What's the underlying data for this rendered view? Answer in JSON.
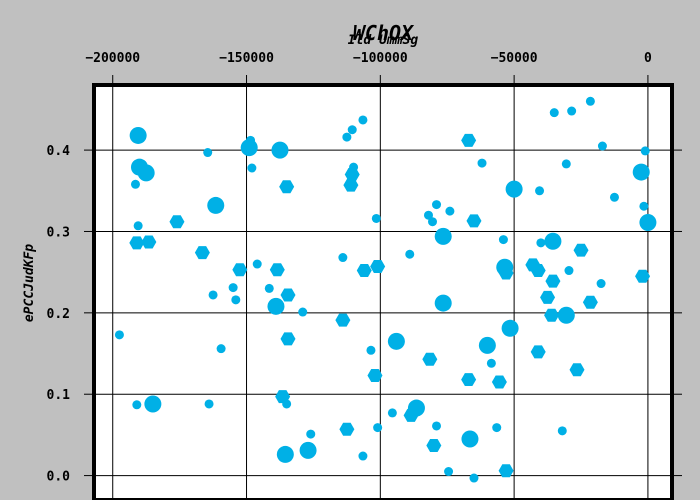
{
  "chart_data": {
    "type": "scatter",
    "title": "WChOX",
    "xlabel": "Ild UmmSg",
    "ylabel": "ePCCJudKFp",
    "x_axis_position": "top",
    "xlim": [
      -207000,
      9000
    ],
    "ylim": [
      -0.03,
      0.48
    ],
    "xticks": [
      -200000,
      -150000,
      -100000,
      -50000,
      0
    ],
    "xtick_labels": [
      "−200000",
      "−150000",
      "−100000",
      "−50000",
      "0"
    ],
    "yticks": [
      0.0,
      0.1,
      0.2,
      0.3,
      0.4
    ],
    "ytick_labels": [
      "0.0",
      "0.1",
      "0.2",
      "0.3",
      "0.4"
    ],
    "grid": true,
    "marker_color": "#00b0e6",
    "series": [
      {
        "points": [
          {
            "x": -197500,
            "y": 0.173,
            "m": "c",
            "s": "s"
          },
          {
            "x": -190500,
            "y": 0.418,
            "m": "c",
            "s": "l"
          },
          {
            "x": -190000,
            "y": 0.379,
            "m": "c",
            "s": "l"
          },
          {
            "x": -187500,
            "y": 0.372,
            "m": "c",
            "s": "l"
          },
          {
            "x": -191500,
            "y": 0.358,
            "m": "c",
            "s": "s"
          },
          {
            "x": -190500,
            "y": 0.307,
            "m": "c",
            "s": "s"
          },
          {
            "x": -191000,
            "y": 0.286,
            "m": "h",
            "s": "m"
          },
          {
            "x": -186500,
            "y": 0.287,
            "m": "h",
            "s": "m"
          },
          {
            "x": -191000,
            "y": 0.087,
            "m": "c",
            "s": "s"
          },
          {
            "x": -185000,
            "y": 0.088,
            "m": "c",
            "s": "l"
          },
          {
            "x": -176000,
            "y": 0.312,
            "m": "h",
            "s": "m"
          },
          {
            "x": -166500,
            "y": 0.274,
            "m": "h",
            "s": "m"
          },
          {
            "x": -164500,
            "y": 0.397,
            "m": "c",
            "s": "s"
          },
          {
            "x": -161500,
            "y": 0.332,
            "m": "c",
            "s": "l"
          },
          {
            "x": -162500,
            "y": 0.222,
            "m": "c",
            "s": "s"
          },
          {
            "x": -159500,
            "y": 0.156,
            "m": "c",
            "s": "s"
          },
          {
            "x": -164000,
            "y": 0.088,
            "m": "c",
            "s": "s"
          },
          {
            "x": -155000,
            "y": 0.231,
            "m": "c",
            "s": "s"
          },
          {
            "x": -154000,
            "y": 0.216,
            "m": "c",
            "s": "s"
          },
          {
            "x": -152500,
            "y": 0.253,
            "m": "h",
            "s": "m"
          },
          {
            "x": -149000,
            "y": 0.403,
            "m": "c",
            "s": "l"
          },
          {
            "x": -148500,
            "y": 0.412,
            "m": "c",
            "s": "s"
          },
          {
            "x": -148000,
            "y": 0.378,
            "m": "c",
            "s": "s"
          },
          {
            "x": -146000,
            "y": 0.26,
            "m": "c",
            "s": "s"
          },
          {
            "x": -141500,
            "y": 0.23,
            "m": "c",
            "s": "s"
          },
          {
            "x": -137500,
            "y": 0.4,
            "m": "c",
            "s": "l"
          },
          {
            "x": -138500,
            "y": 0.253,
            "m": "h",
            "s": "m"
          },
          {
            "x": -139000,
            "y": 0.208,
            "m": "c",
            "s": "l"
          },
          {
            "x": -135000,
            "y": 0.355,
            "m": "h",
            "s": "m"
          },
          {
            "x": -134500,
            "y": 0.222,
            "m": "h",
            "s": "m"
          },
          {
            "x": -134500,
            "y": 0.168,
            "m": "h",
            "s": "m"
          },
          {
            "x": -129000,
            "y": 0.201,
            "m": "c",
            "s": "s"
          },
          {
            "x": -136500,
            "y": 0.097,
            "m": "h",
            "s": "m"
          },
          {
            "x": -135000,
            "y": 0.088,
            "m": "c",
            "s": "s"
          },
          {
            "x": -135500,
            "y": 0.026,
            "m": "c",
            "s": "l"
          },
          {
            "x": -127000,
            "y": 0.031,
            "m": "c",
            "s": "l"
          },
          {
            "x": -126000,
            "y": 0.051,
            "m": "c",
            "s": "s"
          },
          {
            "x": -112500,
            "y": 0.416,
            "m": "c",
            "s": "s"
          },
          {
            "x": -110500,
            "y": 0.425,
            "m": "c",
            "s": "s"
          },
          {
            "x": -106500,
            "y": 0.437,
            "m": "c",
            "s": "s"
          },
          {
            "x": -110000,
            "y": 0.379,
            "m": "c",
            "s": "s"
          },
          {
            "x": -110500,
            "y": 0.37,
            "m": "h",
            "s": "m"
          },
          {
            "x": -111000,
            "y": 0.357,
            "m": "h",
            "s": "m"
          },
          {
            "x": -114000,
            "y": 0.268,
            "m": "c",
            "s": "s"
          },
          {
            "x": -114000,
            "y": 0.191,
            "m": "h",
            "s": "m"
          },
          {
            "x": -106000,
            "y": 0.252,
            "m": "h",
            "s": "m"
          },
          {
            "x": -101000,
            "y": 0.257,
            "m": "h",
            "s": "m"
          },
          {
            "x": -101500,
            "y": 0.316,
            "m": "c",
            "s": "s"
          },
          {
            "x": -103500,
            "y": 0.154,
            "m": "c",
            "s": "s"
          },
          {
            "x": -102000,
            "y": 0.123,
            "m": "h",
            "s": "m"
          },
          {
            "x": -112500,
            "y": 0.057,
            "m": "h",
            "s": "m"
          },
          {
            "x": -101000,
            "y": 0.059,
            "m": "c",
            "s": "s"
          },
          {
            "x": -106500,
            "y": 0.024,
            "m": "c",
            "s": "s"
          },
          {
            "x": -94000,
            "y": 0.165,
            "m": "c",
            "s": "l"
          },
          {
            "x": -95500,
            "y": 0.077,
            "m": "c",
            "s": "s"
          },
          {
            "x": -89000,
            "y": 0.272,
            "m": "c",
            "s": "s"
          },
          {
            "x": -86500,
            "y": 0.083,
            "m": "c",
            "s": "l"
          },
          {
            "x": -88500,
            "y": 0.074,
            "m": "h",
            "s": "m"
          },
          {
            "x": -82000,
            "y": 0.32,
            "m": "c",
            "s": "s"
          },
          {
            "x": -80500,
            "y": 0.312,
            "m": "c",
            "s": "s"
          },
          {
            "x": -79000,
            "y": 0.333,
            "m": "c",
            "s": "s"
          },
          {
            "x": -81500,
            "y": 0.143,
            "m": "h",
            "s": "m"
          },
          {
            "x": -76500,
            "y": 0.294,
            "m": "c",
            "s": "l"
          },
          {
            "x": -74000,
            "y": 0.325,
            "m": "c",
            "s": "s"
          },
          {
            "x": -76500,
            "y": 0.212,
            "m": "c",
            "s": "l"
          },
          {
            "x": -79000,
            "y": 0.061,
            "m": "c",
            "s": "s"
          },
          {
            "x": -80000,
            "y": 0.037,
            "m": "h",
            "s": "m"
          },
          {
            "x": -74500,
            "y": 0.005,
            "m": "c",
            "s": "s"
          },
          {
            "x": -67000,
            "y": 0.412,
            "m": "h",
            "s": "m"
          },
          {
            "x": -62000,
            "y": 0.384,
            "m": "c",
            "s": "s"
          },
          {
            "x": -65000,
            "y": 0.313,
            "m": "h",
            "s": "m"
          },
          {
            "x": -60000,
            "y": 0.16,
            "m": "c",
            "s": "l"
          },
          {
            "x": -58500,
            "y": 0.138,
            "m": "c",
            "s": "s"
          },
          {
            "x": -67000,
            "y": 0.118,
            "m": "h",
            "s": "m"
          },
          {
            "x": -66500,
            "y": 0.045,
            "m": "c",
            "s": "l"
          },
          {
            "x": -65000,
            "y": -0.003,
            "m": "c",
            "s": "s"
          },
          {
            "x": -50000,
            "y": 0.352,
            "m": "c",
            "s": "l"
          },
          {
            "x": -54000,
            "y": 0.29,
            "m": "c",
            "s": "s"
          },
          {
            "x": -53500,
            "y": 0.256,
            "m": "c",
            "s": "l"
          },
          {
            "x": -53000,
            "y": 0.249,
            "m": "h",
            "s": "m"
          },
          {
            "x": -51500,
            "y": 0.181,
            "m": "c",
            "s": "l"
          },
          {
            "x": -55500,
            "y": 0.115,
            "m": "h",
            "s": "m"
          },
          {
            "x": -56500,
            "y": 0.059,
            "m": "c",
            "s": "s"
          },
          {
            "x": -53000,
            "y": 0.006,
            "m": "h",
            "s": "m"
          },
          {
            "x": -40500,
            "y": 0.35,
            "m": "c",
            "s": "s"
          },
          {
            "x": -40000,
            "y": 0.286,
            "m": "c",
            "s": "s"
          },
          {
            "x": -43000,
            "y": 0.259,
            "m": "h",
            "s": "m"
          },
          {
            "x": -41000,
            "y": 0.252,
            "m": "h",
            "s": "m"
          },
          {
            "x": -41000,
            "y": 0.152,
            "m": "h",
            "s": "m"
          },
          {
            "x": -35000,
            "y": 0.446,
            "m": "c",
            "s": "s"
          },
          {
            "x": -28500,
            "y": 0.448,
            "m": "c",
            "s": "s"
          },
          {
            "x": -35500,
            "y": 0.288,
            "m": "c",
            "s": "l"
          },
          {
            "x": -35500,
            "y": 0.239,
            "m": "h",
            "s": "m"
          },
          {
            "x": -37500,
            "y": 0.219,
            "m": "h",
            "s": "m"
          },
          {
            "x": -36000,
            "y": 0.197,
            "m": "h",
            "s": "m"
          },
          {
            "x": -30500,
            "y": 0.197,
            "m": "c",
            "s": "l"
          },
          {
            "x": -29500,
            "y": 0.252,
            "m": "c",
            "s": "s"
          },
          {
            "x": -30500,
            "y": 0.383,
            "m": "c",
            "s": "s"
          },
          {
            "x": -21500,
            "y": 0.46,
            "m": "c",
            "s": "s"
          },
          {
            "x": -26500,
            "y": 0.13,
            "m": "h",
            "s": "m"
          },
          {
            "x": -25000,
            "y": 0.277,
            "m": "h",
            "s": "m"
          },
          {
            "x": -21500,
            "y": 0.213,
            "m": "h",
            "s": "m"
          },
          {
            "x": -17000,
            "y": 0.405,
            "m": "c",
            "s": "s"
          },
          {
            "x": -17500,
            "y": 0.236,
            "m": "c",
            "s": "s"
          },
          {
            "x": -32000,
            "y": 0.055,
            "m": "c",
            "s": "s"
          },
          {
            "x": -12500,
            "y": 0.342,
            "m": "c",
            "s": "s"
          },
          {
            "x": -2500,
            "y": 0.373,
            "m": "c",
            "s": "l"
          },
          {
            "x": -1000,
            "y": 0.399,
            "m": "c",
            "s": "s"
          },
          {
            "x": -1500,
            "y": 0.331,
            "m": "c",
            "s": "s"
          },
          {
            "x": 0,
            "y": 0.311,
            "m": "c",
            "s": "l"
          },
          {
            "x": -2000,
            "y": 0.245,
            "m": "h",
            "s": "m"
          }
        ]
      }
    ]
  }
}
